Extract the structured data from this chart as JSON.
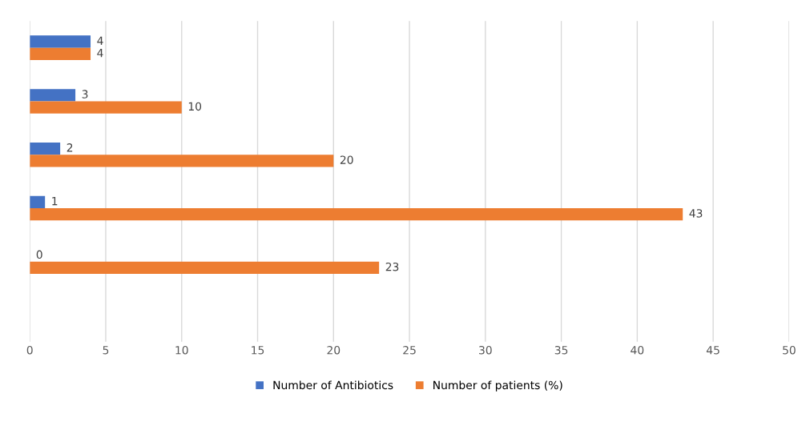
{
  "chart_data": {
    "type": "bar",
    "orientation": "horizontal",
    "categories": [
      null,
      null,
      null,
      null,
      null,
      null
    ],
    "series": [
      {
        "name": "Number of Antibiotics",
        "color": "#4472c4",
        "values": [
          4,
          3,
          2,
          1,
          0,
          null
        ]
      },
      {
        "name": "Number of patients (%)",
        "color": "#ed7d31",
        "values": [
          4,
          10,
          20,
          43,
          23,
          null
        ]
      }
    ],
    "xlim": [
      0,
      50
    ],
    "xticks": [
      0,
      5,
      10,
      15,
      20,
      25,
      30,
      35,
      40,
      45,
      50
    ],
    "grid": "x",
    "legend": "bottom",
    "data_labels": true
  }
}
